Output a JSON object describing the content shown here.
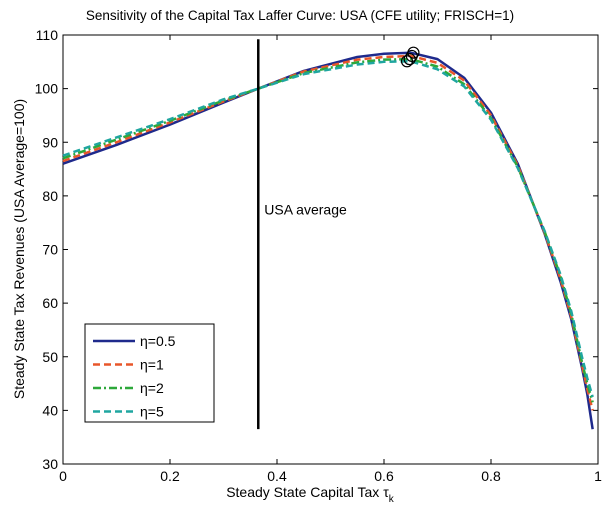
{
  "chart_data": {
    "type": "line",
    "title": "Sensitivity of the Capital Tax Laffer Curve: USA    (CFE utility; FRISCH=1)",
    "xlabel": "Steady State Capital Tax",
    "xlabel_sub": "k",
    "xlabel_symbol": "τ",
    "ylabel": "Steady State Tax Revenues (USA    Average=100)",
    "xlim": [
      0,
      1
    ],
    "ylim": [
      30,
      110
    ],
    "xticks": [
      0,
      0.2,
      0.4,
      0.6,
      0.8,
      1
    ],
    "xtick_labels": [
      "0",
      "0.2",
      "0.4",
      "0.6",
      "0.8",
      "1"
    ],
    "yticks": [
      30,
      40,
      50,
      60,
      70,
      80,
      90,
      100,
      110
    ],
    "ytick_labels": [
      "30",
      "40",
      "50",
      "60",
      "70",
      "80",
      "90",
      "100",
      "110"
    ],
    "grid": false,
    "legend_position": "bottom-left",
    "vline": {
      "x": 0.365,
      "y_from": 36.5,
      "y_to": 109.2,
      "label": "USA   average",
      "label_y": 76.5
    },
    "series": [
      {
        "name": "η=0.5",
        "color": "#1f2a8c",
        "style": "solid",
        "x": [
          0,
          0.1,
          0.2,
          0.3,
          0.365,
          0.45,
          0.55,
          0.6,
          0.65,
          0.7,
          0.75,
          0.8,
          0.85,
          0.9,
          0.93,
          0.95,
          0.97,
          0.98,
          0.99
        ],
        "values": [
          86,
          89.5,
          93.3,
          97.4,
          100,
          103.3,
          105.9,
          106.5,
          106.7,
          105.5,
          102,
          95.5,
          86,
          73,
          64,
          57,
          48,
          43,
          36.5
        ],
        "peak_marker": {
          "x": 0.655,
          "y": 106.7
        }
      },
      {
        "name": "η=1",
        "color": "#e8562a",
        "style": "dashed",
        "x": [
          0,
          0.1,
          0.2,
          0.3,
          0.365,
          0.45,
          0.55,
          0.6,
          0.65,
          0.7,
          0.75,
          0.8,
          0.85,
          0.9,
          0.93,
          0.95,
          0.97,
          0.98,
          0.99
        ],
        "values": [
          86.5,
          90,
          93.7,
          97.6,
          100,
          103.2,
          105.4,
          105.9,
          106.1,
          104.8,
          101.5,
          95,
          85.7,
          73.2,
          64.5,
          57.5,
          48.5,
          44,
          40
        ],
        "peak_marker": {
          "x": 0.652,
          "y": 106.1
        }
      },
      {
        "name": "η=2",
        "color": "#2da83a",
        "style": "dashdot",
        "x": [
          0,
          0.1,
          0.2,
          0.3,
          0.365,
          0.45,
          0.55,
          0.6,
          0.65,
          0.7,
          0.75,
          0.8,
          0.85,
          0.9,
          0.93,
          0.95,
          0.97,
          0.98,
          0.99
        ],
        "values": [
          87,
          90.5,
          94,
          97.8,
          100,
          102.9,
          104.9,
          105.4,
          105.5,
          104.1,
          100.8,
          94.5,
          85.4,
          73.4,
          65,
          58,
          49,
          45,
          41.5
        ],
        "peak_marker": {
          "x": 0.648,
          "y": 105.5
        }
      },
      {
        "name": "η=5",
        "color": "#1fa6a0",
        "style": "dashed",
        "x": [
          0,
          0.1,
          0.2,
          0.3,
          0.365,
          0.45,
          0.55,
          0.6,
          0.65,
          0.7,
          0.75,
          0.8,
          0.85,
          0.9,
          0.93,
          0.95,
          0.97,
          0.98,
          0.99
        ],
        "values": [
          87.5,
          90.9,
          94.3,
          98,
          100,
          102.7,
          104.5,
          105,
          105.1,
          103.6,
          100.4,
          94.2,
          85.2,
          73.5,
          65.3,
          58.5,
          50,
          46,
          42.5
        ],
        "peak_marker": {
          "x": 0.643,
          "y": 105.1
        }
      }
    ]
  }
}
